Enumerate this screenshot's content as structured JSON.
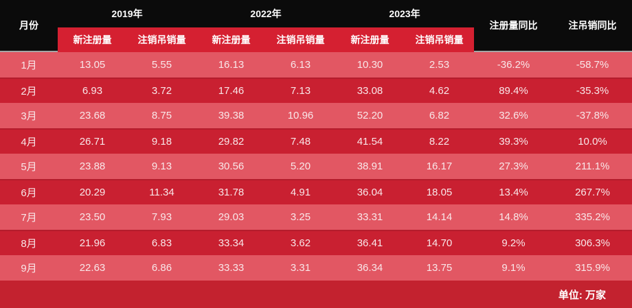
{
  "colors": {
    "header_bg": "#0b0b0b",
    "subheader_red": "#d52031",
    "row_light": "#e25763",
    "row_dark": "#c92031",
    "footer_bg": "#c3222f",
    "divider_gray": "#a5a5a5",
    "value_text": "#f9e7e9"
  },
  "table": {
    "month_header": "月份",
    "years": [
      "2019年",
      "2022年",
      "2023年"
    ],
    "sub_headers": [
      "新注册量",
      "注销吊销量",
      "新注册量",
      "注销吊销量",
      "新注册量",
      "注销吊销量"
    ],
    "yoy_headers": [
      "注册量同比",
      "注吊销同比"
    ],
    "rows": [
      {
        "month": "1月",
        "values": [
          "13.05",
          "5.55",
          "16.13",
          "6.13",
          "10.30",
          "2.53"
        ],
        "yoy": [
          "-36.2%",
          "-58.7%"
        ]
      },
      {
        "month": "2月",
        "values": [
          "6.93",
          "3.72",
          "17.46",
          "7.13",
          "33.08",
          "4.62"
        ],
        "yoy": [
          "89.4%",
          "-35.3%"
        ]
      },
      {
        "month": "3月",
        "values": [
          "23.68",
          "8.75",
          "39.38",
          "10.96",
          "52.20",
          "6.82"
        ],
        "yoy": [
          "32.6%",
          "-37.8%"
        ]
      },
      {
        "month": "4月",
        "values": [
          "26.71",
          "9.18",
          "29.82",
          "7.48",
          "41.54",
          "8.22"
        ],
        "yoy": [
          "39.3%",
          "10.0%"
        ]
      },
      {
        "month": "5月",
        "values": [
          "23.88",
          "9.13",
          "30.56",
          "5.20",
          "38.91",
          "16.17"
        ],
        "yoy": [
          "27.3%",
          "211.1%"
        ]
      },
      {
        "month": "6月",
        "values": [
          "20.29",
          "11.34",
          "31.78",
          "4.91",
          "36.04",
          "18.05"
        ],
        "yoy": [
          "13.4%",
          "267.7%"
        ]
      },
      {
        "month": "7月",
        "values": [
          "23.50",
          "7.93",
          "29.03",
          "3.25",
          "33.31",
          "14.14"
        ],
        "yoy": [
          "14.8%",
          "335.2%"
        ]
      },
      {
        "month": "8月",
        "values": [
          "21.96",
          "6.83",
          "33.34",
          "3.62",
          "36.41",
          "14.70"
        ],
        "yoy": [
          "9.2%",
          "306.3%"
        ]
      },
      {
        "month": "9月",
        "values": [
          "22.63",
          "6.86",
          "33.33",
          "3.31",
          "36.34",
          "13.75"
        ],
        "yoy": [
          "9.1%",
          "315.9%"
        ]
      }
    ],
    "unit_note": "单位: 万家"
  },
  "chart_data": {
    "type": "table",
    "title": "",
    "row_header": "月份",
    "categories": [
      "1月",
      "2月",
      "3月",
      "4月",
      "5月",
      "6月",
      "7月",
      "8月",
      "9月"
    ],
    "series": [
      {
        "name": "2019年 新注册量",
        "values": [
          13.05,
          6.93,
          23.68,
          26.71,
          23.88,
          20.29,
          23.5,
          21.96,
          22.63
        ]
      },
      {
        "name": "2019年 注销吊销量",
        "values": [
          5.55,
          3.72,
          8.75,
          9.18,
          9.13,
          11.34,
          7.93,
          6.83,
          6.86
        ]
      },
      {
        "name": "2022年 新注册量",
        "values": [
          16.13,
          17.46,
          39.38,
          29.82,
          30.56,
          31.78,
          29.03,
          33.34,
          33.33
        ]
      },
      {
        "name": "2022年 注销吊销量",
        "values": [
          6.13,
          7.13,
          10.96,
          7.48,
          5.2,
          4.91,
          3.25,
          3.62,
          3.31
        ]
      },
      {
        "name": "2023年 新注册量",
        "values": [
          10.3,
          33.08,
          52.2,
          41.54,
          38.91,
          36.04,
          33.31,
          36.41,
          36.34
        ]
      },
      {
        "name": "2023年 注销吊销量",
        "values": [
          2.53,
          4.62,
          6.82,
          8.22,
          16.17,
          18.05,
          14.14,
          14.7,
          13.75
        ]
      },
      {
        "name": "注册量同比",
        "values": [
          "-36.2%",
          "89.4%",
          "32.6%",
          "39.3%",
          "27.3%",
          "13.4%",
          "14.8%",
          "9.2%",
          "9.1%"
        ]
      },
      {
        "name": "注吊销同比",
        "values": [
          "-58.7%",
          "-35.3%",
          "-37.8%",
          "10.0%",
          "211.1%",
          "267.7%",
          "335.2%",
          "306.3%",
          "315.9%"
        ]
      }
    ],
    "unit": "万家",
    "layout": {
      "grid": false,
      "legend_position": "none",
      "alternating_row_colors": true
    }
  }
}
